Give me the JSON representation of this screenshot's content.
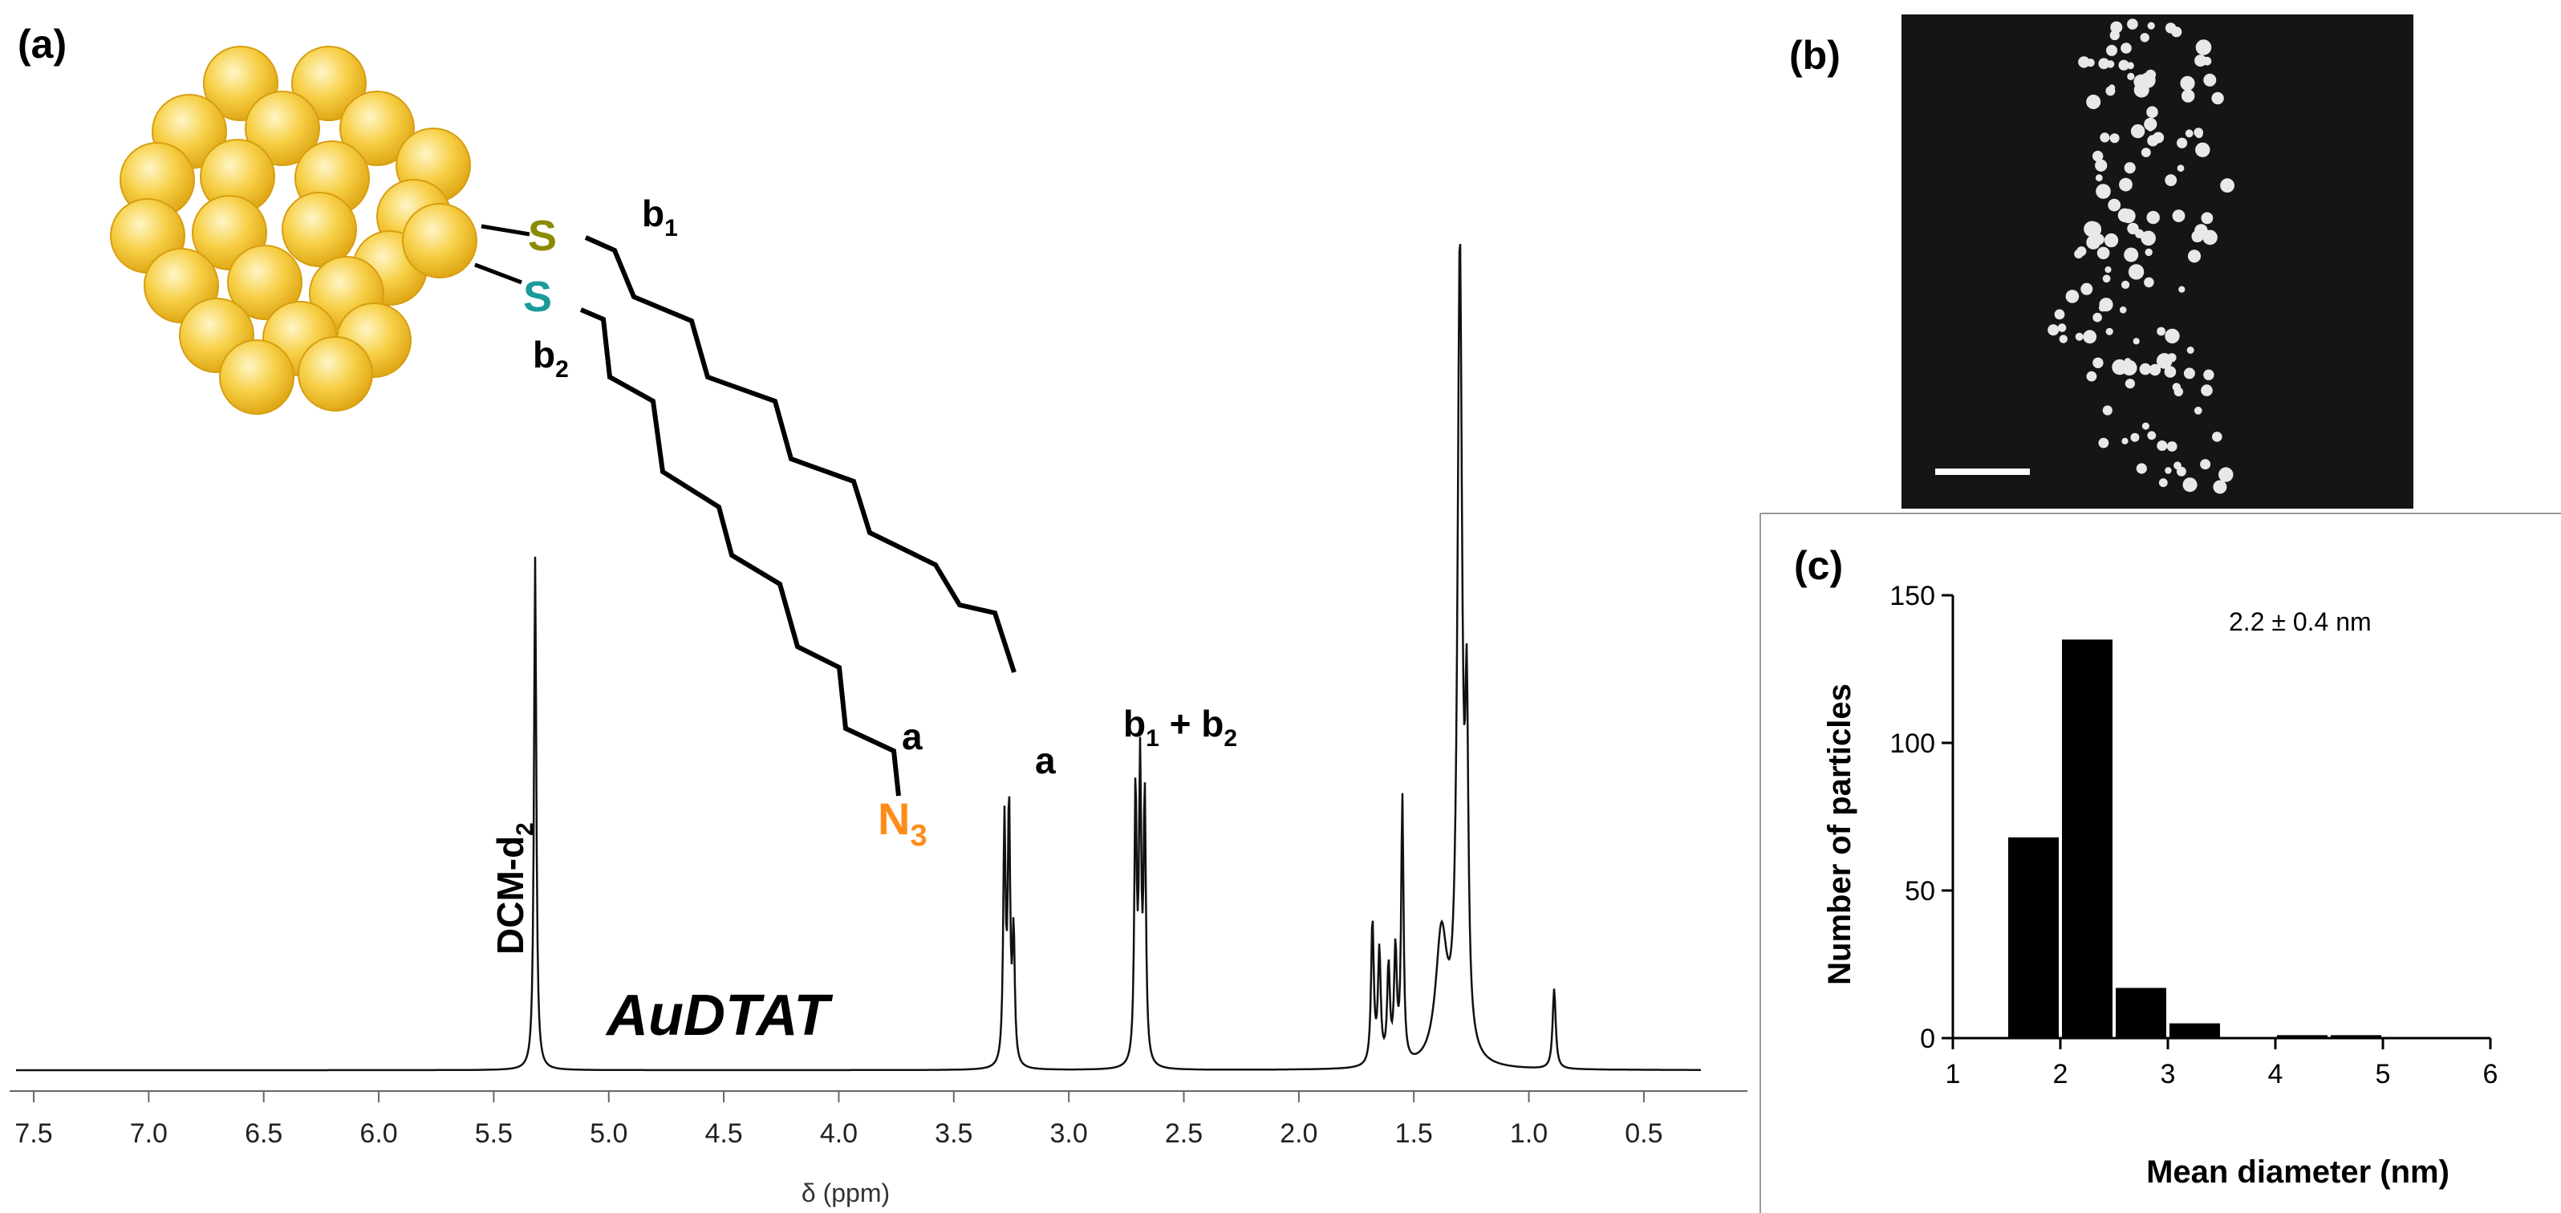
{
  "figure": {
    "panel_a": {
      "label": "(a)",
      "sample_name": "AuDTAT",
      "solvent_label": "DCM-d",
      "solvent_sub": "2",
      "peak_labels": {
        "a": "a",
        "b1b2": {
          "b": "b",
          "sub1": "1",
          "plus": " + ",
          "sub2": "2"
        }
      },
      "structure": {
        "sulfur_label": "S",
        "chain_label_b1": {
          "b": "b",
          "sub": "1"
        },
        "chain_label_b2": {
          "b": "b",
          "sub": "2"
        },
        "chain_label_a": "a",
        "azide": {
          "n": "N",
          "sub": "3"
        },
        "colors": {
          "gold": "#f5c518",
          "sulfur1": "#8b8b00",
          "sulfur2": "#1a9a9a",
          "azide": "#ff8c1a"
        }
      },
      "x_axis": {
        "label": "δ (ppm)",
        "ticks": [
          "7.5",
          "7.0",
          "6.5",
          "6.0",
          "5.5",
          "5.0",
          "4.5",
          "4.0",
          "3.5",
          "3.0",
          "2.5",
          "2.0",
          "1.5",
          "1.0",
          "0.5"
        ]
      }
    },
    "panel_b": {
      "label": "(b)"
    },
    "panel_c": {
      "label": "(c)",
      "annotation": "2.2  ± 0.4 nm",
      "chart_data": {
        "type": "bar",
        "title": "",
        "xlabel": "Mean diameter (nm)",
        "ylabel": "Number of particles",
        "categories": [
          "1.75",
          "2.25",
          "2.75",
          "3.25",
          "3.75",
          "4.25",
          "4.75"
        ],
        "bin_centers": [
          1.75,
          2.25,
          2.75,
          3.25,
          3.75,
          4.25,
          4.75
        ],
        "bin_width": 0.5,
        "values": [
          68,
          135,
          17,
          5,
          0,
          1,
          1
        ],
        "xlim": [
          1,
          6
        ],
        "ylim": [
          0,
          150
        ],
        "xticks": [
          "1",
          "2",
          "3",
          "4",
          "5",
          "6"
        ],
        "yticks": [
          "0",
          "50",
          "100",
          "150"
        ],
        "grid": false,
        "legend": "none"
      }
    }
  }
}
